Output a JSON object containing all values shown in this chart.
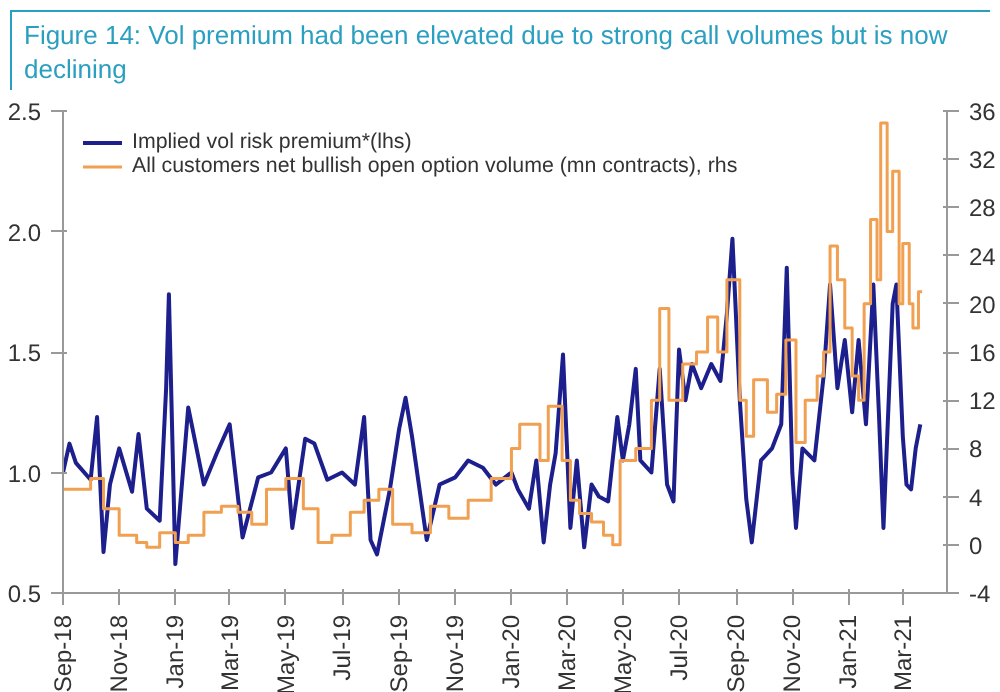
{
  "chart_data": {
    "type": "line",
    "title": "Figure 14: Vol premium had been elevated due to strong call volumes but is now declining",
    "legend": "top left",
    "grid": false,
    "xlim": [
      "2018-09-01",
      "2021-04-18"
    ],
    "xticks": [
      {
        "value": "2018-09-01",
        "label": "Sep-18"
      },
      {
        "value": "2018-11-01",
        "label": "Nov-18"
      },
      {
        "value": "2019-01-01",
        "label": "Jan-19"
      },
      {
        "value": "2019-03-01",
        "label": "Mar-19"
      },
      {
        "value": "2019-05-01",
        "label": "May-19"
      },
      {
        "value": "2019-07-01",
        "label": "Jul-19"
      },
      {
        "value": "2019-09-01",
        "label": "Sep-19"
      },
      {
        "value": "2019-11-01",
        "label": "Nov-19"
      },
      {
        "value": "2020-01-01",
        "label": "Jan-20"
      },
      {
        "value": "2020-03-01",
        "label": "Mar-20"
      },
      {
        "value": "2020-05-01",
        "label": "May-20"
      },
      {
        "value": "2020-07-01",
        "label": "Jul-20"
      },
      {
        "value": "2020-09-01",
        "label": "Sep-20"
      },
      {
        "value": "2020-11-01",
        "label": "Nov-20"
      },
      {
        "value": "2021-01-01",
        "label": "Jan-21"
      },
      {
        "value": "2021-03-01",
        "label": "Mar-21"
      }
    ],
    "ylim": [
      0.5,
      2.5
    ],
    "yticks": [
      {
        "value": 0.5,
        "label": "0.5"
      },
      {
        "value": 1.0,
        "label": "1.0"
      },
      {
        "value": 1.5,
        "label": "1.5"
      },
      {
        "value": 2.0,
        "label": "2.0"
      },
      {
        "value": 2.5,
        "label": "2.5"
      }
    ],
    "y2lim": [
      -4,
      36
    ],
    "y2ticks": [
      -4,
      0,
      4,
      8,
      12,
      16,
      20,
      24,
      28,
      32,
      36
    ],
    "series": [
      {
        "name": "Implied vol risk premium*(lhs)",
        "color": "#1c1f8c",
        "x": [
          "2018-09-01",
          "2018-09-08",
          "2018-09-15",
          "2018-10-01",
          "2018-10-08",
          "2018-10-15",
          "2018-10-22",
          "2018-11-01",
          "2018-11-15",
          "2018-11-22",
          "2018-12-01",
          "2018-12-15",
          "2018-12-22",
          "2018-12-25",
          "2019-01-01",
          "2019-01-15",
          "2019-02-01",
          "2019-02-15",
          "2019-03-01",
          "2019-03-15",
          "2019-04-01",
          "2019-04-15",
          "2019-05-01",
          "2019-05-08",
          "2019-05-22",
          "2019-06-01",
          "2019-06-15",
          "2019-07-01",
          "2019-07-15",
          "2019-07-25",
          "2019-08-01",
          "2019-08-08",
          "2019-08-22",
          "2019-09-01",
          "2019-09-08",
          "2019-09-15",
          "2019-10-01",
          "2019-10-15",
          "2019-11-01",
          "2019-11-15",
          "2019-12-01",
          "2019-12-15",
          "2020-01-01",
          "2020-01-08",
          "2020-01-20",
          "2020-01-28",
          "2020-02-05",
          "2020-02-12",
          "2020-02-18",
          "2020-02-26",
          "2020-03-05",
          "2020-03-12",
          "2020-03-20",
          "2020-03-28",
          "2020-04-05",
          "2020-04-15",
          "2020-04-25",
          "2020-05-01",
          "2020-05-08",
          "2020-05-15",
          "2020-05-20",
          "2020-06-01",
          "2020-06-10",
          "2020-06-18",
          "2020-06-25",
          "2020-07-01",
          "2020-07-08",
          "2020-07-15",
          "2020-07-25",
          "2020-08-05",
          "2020-08-15",
          "2020-08-22",
          "2020-08-28",
          "2020-09-05",
          "2020-09-12",
          "2020-09-18",
          "2020-09-28",
          "2020-10-10",
          "2020-10-20",
          "2020-10-26",
          "2020-11-01",
          "2020-11-05",
          "2020-11-12",
          "2020-11-25",
          "2020-12-05",
          "2020-12-12",
          "2020-12-20",
          "2020-12-28",
          "2021-01-05",
          "2021-01-12",
          "2021-01-20",
          "2021-01-28",
          "2021-02-03",
          "2021-02-08",
          "2021-02-18",
          "2021-02-22",
          "2021-03-01",
          "2021-03-05",
          "2021-03-10",
          "2021-03-15",
          "2021-03-20"
        ],
        "values": [
          1.0,
          1.12,
          1.04,
          0.97,
          1.23,
          0.67,
          0.95,
          1.1,
          0.92,
          1.16,
          0.85,
          0.8,
          1.35,
          1.74,
          0.62,
          1.27,
          0.95,
          1.08,
          1.2,
          0.73,
          0.98,
          1.0,
          1.1,
          0.77,
          1.14,
          1.12,
          0.97,
          1.0,
          0.95,
          1.23,
          0.72,
          0.66,
          0.93,
          1.18,
          1.31,
          1.15,
          0.72,
          0.95,
          0.98,
          1.05,
          1.02,
          0.95,
          1.0,
          0.93,
          0.85,
          1.05,
          0.71,
          0.95,
          1.08,
          1.49,
          0.77,
          1.05,
          0.69,
          0.95,
          0.9,
          0.88,
          1.23,
          1.05,
          1.2,
          1.43,
          1.05,
          1.0,
          1.43,
          0.95,
          0.88,
          1.51,
          1.3,
          1.45,
          1.35,
          1.45,
          1.38,
          1.66,
          1.97,
          1.3,
          0.89,
          0.71,
          1.05,
          1.1,
          1.2,
          1.85,
          1.0,
          0.77,
          1.1,
          1.05,
          1.4,
          1.78,
          1.35,
          1.55,
          1.25,
          1.55,
          1.2,
          1.78,
          1.25,
          0.77,
          1.7,
          1.78,
          1.15,
          0.95,
          0.93,
          1.1,
          1.2
        ]
      },
      {
        "name": "All customers net bullish open option volume (mn contracts), rhs",
        "color": "#f0a050",
        "type": "step",
        "axis": "y2",
        "x": [
          "2018-09-01",
          "2018-10-01",
          "2018-10-15",
          "2018-11-01",
          "2018-11-20",
          "2018-12-01",
          "2018-12-15",
          "2019-01-01",
          "2019-01-15",
          "2019-02-01",
          "2019-02-20",
          "2019-03-10",
          "2019-03-25",
          "2019-04-10",
          "2019-05-01",
          "2019-05-20",
          "2019-06-05",
          "2019-06-20",
          "2019-07-10",
          "2019-07-25",
          "2019-08-10",
          "2019-08-25",
          "2019-09-15",
          "2019-10-05",
          "2019-10-25",
          "2019-11-15",
          "2019-12-10",
          "2020-01-01",
          "2020-01-10",
          "2020-02-01",
          "2020-02-10",
          "2020-02-25",
          "2020-03-05",
          "2020-03-15",
          "2020-03-28",
          "2020-04-10",
          "2020-04-20",
          "2020-04-28",
          "2020-05-15",
          "2020-06-01",
          "2020-06-10",
          "2020-06-20",
          "2020-07-05",
          "2020-07-20",
          "2020-08-01",
          "2020-08-12",
          "2020-08-22",
          "2020-09-05",
          "2020-09-12",
          "2020-09-20",
          "2020-10-05",
          "2020-10-15",
          "2020-10-25",
          "2020-11-05",
          "2020-11-15",
          "2020-11-28",
          "2020-12-05",
          "2020-12-12",
          "2020-12-20",
          "2020-12-28",
          "2021-01-05",
          "2021-01-12",
          "2021-01-18",
          "2021-01-25",
          "2021-02-01",
          "2021-02-05",
          "2021-02-12",
          "2021-02-18",
          "2021-02-25",
          "2021-03-01",
          "2021-03-08",
          "2021-03-12",
          "2021-03-18",
          "2021-03-22"
        ],
        "values": [
          4.6,
          5.5,
          3.0,
          0.8,
          0.2,
          -0.2,
          1.0,
          0.2,
          0.8,
          2.7,
          3.2,
          2.7,
          1.7,
          4.6,
          5.5,
          3.0,
          0.2,
          0.8,
          2.7,
          3.7,
          4.6,
          1.7,
          1.0,
          3.2,
          2.2,
          3.7,
          5.5,
          8.0,
          10.0,
          7.0,
          11.5,
          7.0,
          3.7,
          2.6,
          1.9,
          0.8,
          0.0,
          7.0,
          8.0,
          12.0,
          19.6,
          12.0,
          15.0,
          16.0,
          18.9,
          16.0,
          22.0,
          12.0,
          9.0,
          13.7,
          11.0,
          12.5,
          17.0,
          8.5,
          12.0,
          14.0,
          16.0,
          24.8,
          22.0,
          18.0,
          14.0,
          12.0,
          20.0,
          27.0,
          22.0,
          35.0,
          26.0,
          31.0,
          20.0,
          25.0,
          20.0,
          18.0,
          21.0,
          21.0
        ]
      }
    ]
  }
}
